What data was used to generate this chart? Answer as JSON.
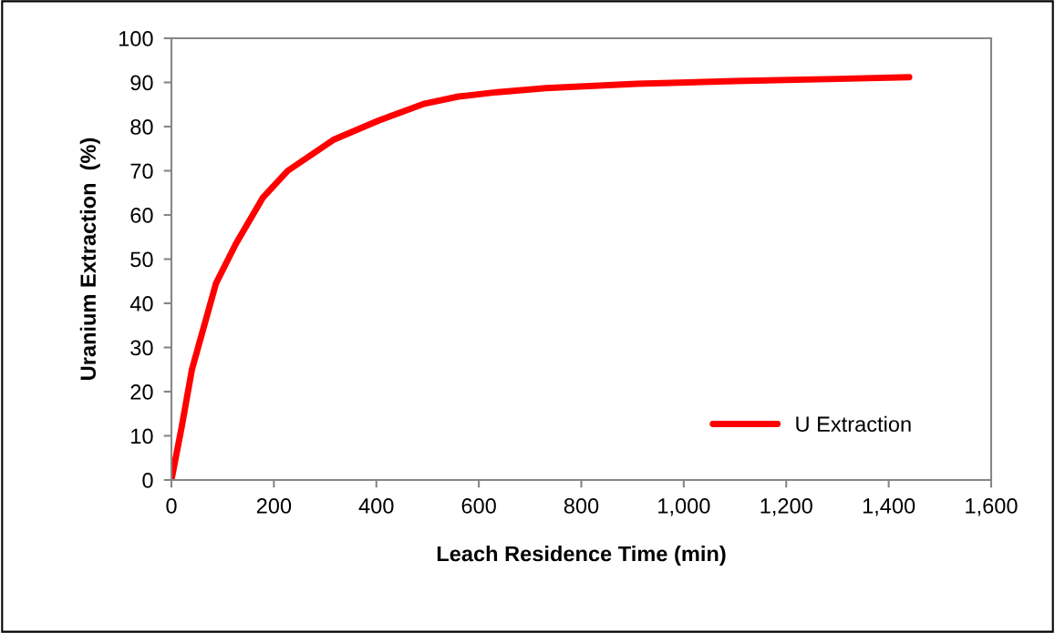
{
  "chart_data": {
    "type": "line",
    "xlabel": "Leach Residence Time (min)",
    "ylabel": "Uranium Extraction  (%)",
    "series": [
      {
        "name": "U Extraction",
        "color": "#ff0000",
        "x": [
          0,
          20,
          40,
          87,
          126,
          179,
          227,
          316,
          405,
          494,
          560,
          636,
          731,
          909,
          1100,
          1300,
          1440
        ],
        "values": [
          0,
          12,
          25,
          44.5,
          53.5,
          64,
          70,
          77,
          81.4,
          85.2,
          86.8,
          87.8,
          88.7,
          89.7,
          90.3,
          90.8,
          91.2
        ]
      }
    ],
    "xlim": [
      0,
      1600
    ],
    "xticks": [
      0,
      {
        "value": 200,
        "label": "200"
      },
      {
        "value": 400,
        "label": "400"
      },
      {
        "value": 600,
        "label": "600"
      },
      {
        "value": 800,
        "label": "800"
      },
      {
        "value": 1000,
        "label": "1,000"
      },
      {
        "value": 1200,
        "label": "1,200"
      },
      {
        "value": 1400,
        "label": "1,400"
      },
      {
        "value": 1600,
        "label": "1,600"
      }
    ],
    "ylim": [
      0,
      100
    ],
    "yticks": [
      0,
      10,
      20,
      30,
      40,
      50,
      60,
      70,
      80,
      90,
      100
    ],
    "grid": false,
    "legend": "bottom right",
    "marker": "none",
    "line_style": "solid"
  }
}
